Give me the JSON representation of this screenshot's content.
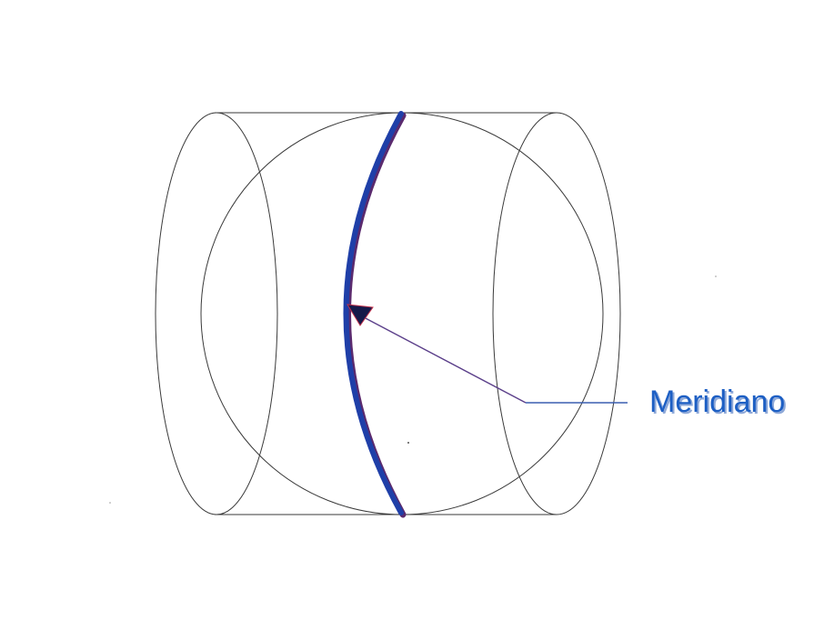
{
  "labels": {
    "meridian": "Meridiano"
  },
  "colors": {
    "meridian_stroke": "#1f3fa8",
    "meridian_shadow": "#5a2a6e",
    "arrow_head": "#151a4a",
    "leader_line": "#5b3f8a",
    "leader_line_horizontal": "#3a5fb0",
    "label_text": "#1d5fc4",
    "label_shadow": "#8fa9d8",
    "outline": "#3a3a3a"
  },
  "icons": {
    "arrow": "arrowhead-icon"
  }
}
